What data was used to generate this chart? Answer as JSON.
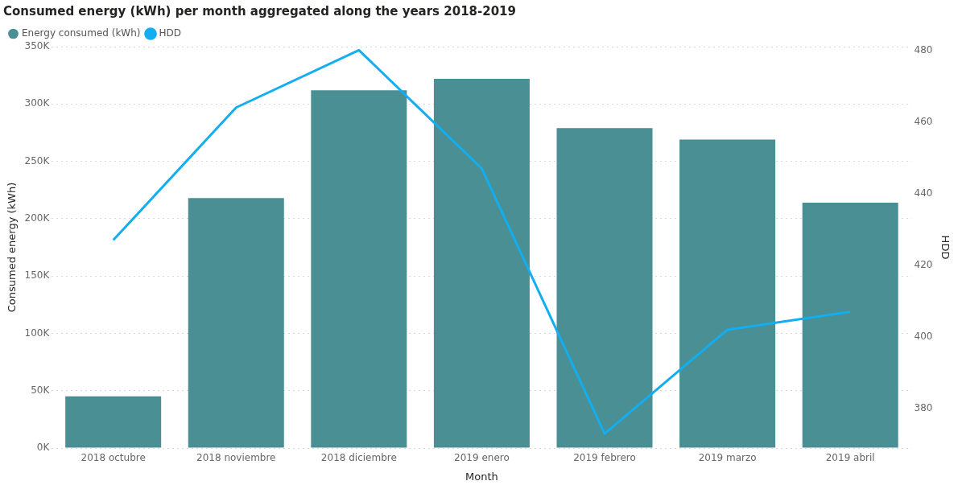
{
  "chart_data": {
    "type": "bar",
    "title": "Consumed energy (kWh) per month aggregated along the years 2018-2019",
    "xlabel": "Month",
    "ylabel": "Consumed energy (kWh)",
    "y2label": "HDD",
    "categories": [
      "2018 octubre",
      "2018 noviembre",
      "2018 diciembre",
      "2019 enero",
      "2019 febrero",
      "2019 marzo",
      "2019 abril"
    ],
    "series": [
      {
        "name": "Energy consumed (kWh)",
        "color": "#4a8f94",
        "values": [
          45000,
          218000,
          312000,
          322000,
          279000,
          269000,
          214000
        ]
      },
      {
        "name": "HDD",
        "type": "line",
        "axis": "y2",
        "color": "#12aef0",
        "marker": "none",
        "values": [
          427,
          464,
          480,
          447,
          373,
          402,
          407
        ]
      }
    ],
    "ylim": [
      0,
      350000
    ],
    "yticks": [
      {
        "value": 0,
        "label": "0K"
      },
      {
        "value": 50000,
        "label": "50K"
      },
      {
        "value": 100000,
        "label": "100K"
      },
      {
        "value": 150000,
        "label": "150K"
      },
      {
        "value": 200000,
        "label": "200K"
      },
      {
        "value": 250000,
        "label": "250K"
      },
      {
        "value": 300000,
        "label": "300K"
      },
      {
        "value": 350000,
        "label": "350K"
      }
    ],
    "y2lim": [
      369,
      481
    ],
    "y2ticks": [
      380,
      400,
      420,
      440,
      460,
      480
    ],
    "grid": "y",
    "legend": "top left"
  }
}
